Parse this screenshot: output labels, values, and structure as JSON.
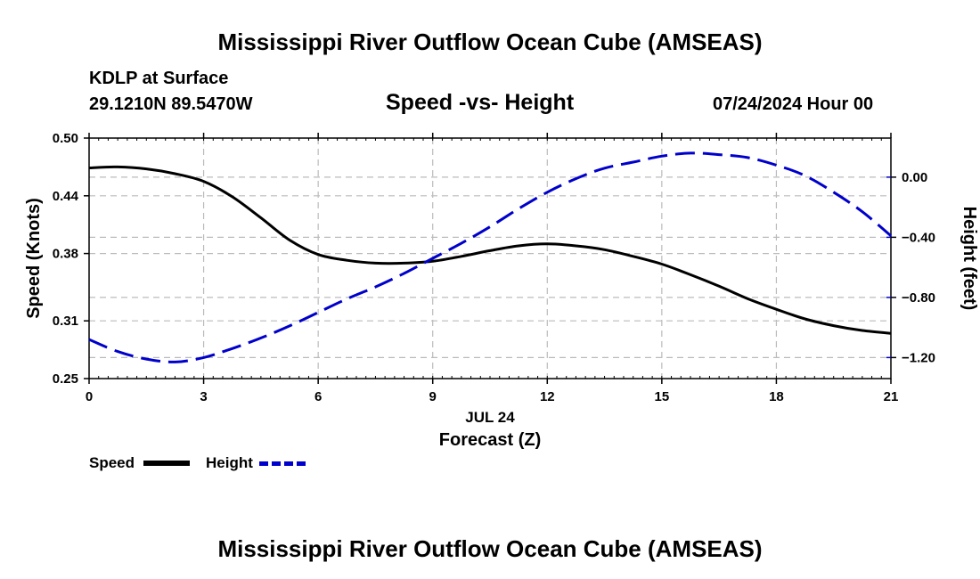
{
  "header": {
    "title_top": "Mississippi River Outflow Ocean Cube (AMSEAS)",
    "title_bottom": "Mississippi River Outflow Ocean Cube (AMSEAS)",
    "station": "KDLP at Surface",
    "coords": "29.1210N  89.5470W",
    "subtitle": "Speed -vs- Height",
    "date": "07/24/2024 Hour 00"
  },
  "legend": {
    "speed_label": "Speed",
    "height_label": "Height"
  },
  "colors": {
    "speed": "#000000",
    "height": "#0000cc",
    "grid": "#bbbbbb"
  },
  "chart_data": {
    "type": "line",
    "title": "Speed -vs- Height",
    "xlabel": "Forecast (Z)",
    "xlabel_date": "JUL 24",
    "ylabel_left": "Speed (Knots)",
    "ylabel_right": "Height (feet)",
    "xlim": [
      0,
      21
    ],
    "xticks": [
      0,
      3,
      6,
      9,
      12,
      15,
      18,
      21
    ],
    "xtick_labels": [
      "0",
      "3",
      "6",
      "9",
      "12",
      "15",
      "18",
      "21"
    ],
    "ylim_left": [
      0.25,
      0.5
    ],
    "yticks_left": [
      0.25,
      0.31,
      0.38,
      0.44,
      0.5
    ],
    "ytick_labels_left": [
      "0.25",
      "0.31",
      "0.38",
      "0.44",
      "0.50"
    ],
    "ylim_right": [
      -1.34,
      0.26
    ],
    "yticks_right": [
      0.0,
      -0.4,
      -0.8,
      -1.2
    ],
    "ytick_labels_right": [
      "0.00",
      "−0.40",
      "−0.80",
      "−1.20"
    ],
    "grid": true,
    "series": [
      {
        "name": "Speed",
        "axis": "left",
        "style": "solid",
        "x": [
          0,
          0.75,
          1.5,
          2.25,
          3,
          3.75,
          4.5,
          5.25,
          6,
          6.75,
          7.5,
          8.25,
          9,
          9.75,
          10.5,
          11.25,
          12,
          12.75,
          13.5,
          14.25,
          15,
          15.75,
          16.5,
          17.25,
          18,
          18.75,
          19.5,
          20.25,
          21
        ],
        "values": [
          0.469,
          0.47,
          0.468,
          0.463,
          0.455,
          0.439,
          0.417,
          0.394,
          0.379,
          0.373,
          0.37,
          0.37,
          0.372,
          0.377,
          0.383,
          0.388,
          0.39,
          0.388,
          0.384,
          0.377,
          0.369,
          0.358,
          0.346,
          0.333,
          0.322,
          0.312,
          0.305,
          0.3,
          0.297
        ]
      },
      {
        "name": "Height",
        "axis": "right",
        "style": "dashed",
        "x": [
          0,
          0.75,
          1.5,
          2.25,
          3,
          3.75,
          4.5,
          5.25,
          6,
          6.75,
          7.5,
          8.25,
          9,
          9.75,
          10.5,
          11.25,
          12,
          12.75,
          13.5,
          14.25,
          15,
          15.75,
          16.5,
          17.25,
          18,
          18.75,
          19.5,
          20.25,
          21
        ],
        "values": [
          -1.08,
          -1.16,
          -1.21,
          -1.23,
          -1.2,
          -1.14,
          -1.07,
          -0.99,
          -0.9,
          -0.81,
          -0.73,
          -0.64,
          -0.54,
          -0.44,
          -0.33,
          -0.21,
          -0.1,
          -0.01,
          0.06,
          0.1,
          0.14,
          0.16,
          0.15,
          0.13,
          0.08,
          0.01,
          -0.1,
          -0.23,
          -0.39
        ]
      }
    ]
  }
}
